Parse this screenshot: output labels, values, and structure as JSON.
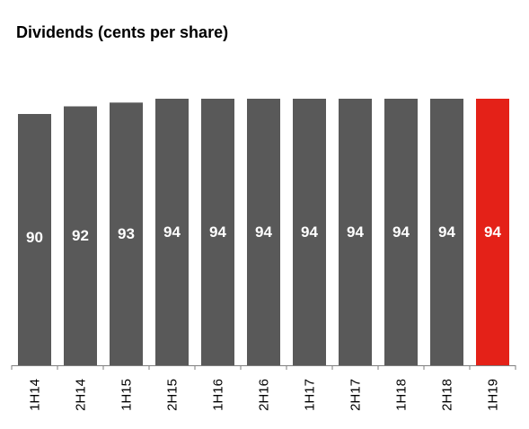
{
  "chart_data": {
    "type": "bar",
    "title": "Dividends (cents per share)",
    "categories": [
      "1H14",
      "2H14",
      "1H15",
      "2H15",
      "1H16",
      "2H16",
      "1H17",
      "2H17",
      "1H18",
      "2H18",
      "1H19"
    ],
    "values": [
      90,
      92,
      93,
      94,
      94,
      94,
      94,
      94,
      94,
      94,
      94
    ],
    "highlight_index": 10,
    "colors": {
      "bar": "#595959",
      "highlight": "#e42118",
      "axis": "#7f7f7f"
    },
    "xlabel": "",
    "ylabel": "",
    "grid": false,
    "legend": "none"
  }
}
